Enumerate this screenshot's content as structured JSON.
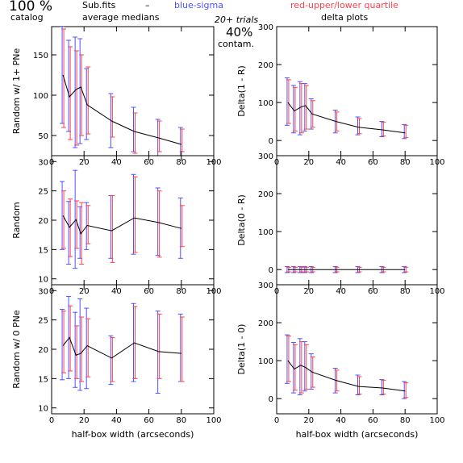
{
  "header": {
    "pct_big": "100 %",
    "catalog": "catalog",
    "subfits": "Sub.fits",
    "dash": "–",
    "medians": "average medians",
    "blue": "blue-sigma",
    "red": "red-upper/lower quartile",
    "trials": "20+ trials",
    "contam_pct": "40%",
    "contam": "contam.",
    "delta_title": "delta plots"
  },
  "colors": {
    "blue": "#5050ff",
    "red": "#ff4050",
    "axis": "#000000",
    "line": "#000000"
  },
  "chart_data": [
    {
      "id": "random-1plus",
      "type": "line",
      "xlabel": "",
      "ylabel": "Random w/ 1+ PNe",
      "xlim": [
        0,
        100
      ],
      "ylim": [
        25,
        185
      ],
      "xticks": [
        0,
        20,
        40,
        60,
        80,
        100
      ],
      "yticks": [
        50,
        100,
        150
      ],
      "show_ytick_labels": [
        50,
        100,
        150
      ],
      "x": [
        7,
        11,
        15,
        18,
        22,
        37,
        51,
        66,
        80
      ],
      "y": [
        125,
        98,
        107,
        110,
        88,
        68,
        55,
        47,
        39
      ],
      "blue": [
        [
          65,
          185
        ],
        [
          55,
          168
        ],
        [
          35,
          172
        ],
        [
          40,
          170
        ],
        [
          45,
          133
        ],
        [
          35,
          102
        ],
        [
          30,
          85
        ],
        [
          25,
          70
        ],
        [
          25,
          60
        ]
      ],
      "red": [
        [
          60,
          182
        ],
        [
          45,
          160
        ],
        [
          38,
          155
        ],
        [
          50,
          150
        ],
        [
          52,
          135
        ],
        [
          48,
          98
        ],
        [
          28,
          78
        ],
        [
          30,
          68
        ],
        [
          30,
          58
        ]
      ]
    },
    {
      "id": "delta-1-r",
      "type": "line",
      "xlabel": "",
      "ylabel": "Delta(1 - R)",
      "xlim": [
        0,
        100
      ],
      "ylim": [
        -40,
        300
      ],
      "xticks": [
        0,
        20,
        40,
        60,
        80,
        100
      ],
      "yticks": [
        0,
        100,
        200,
        300
      ],
      "show_ytick_labels": [
        0,
        100,
        200,
        300
      ],
      "x": [
        7,
        11,
        15,
        18,
        22,
        37,
        51,
        66,
        80
      ],
      "y": [
        100,
        78,
        88,
        92,
        70,
        50,
        35,
        28,
        20
      ],
      "blue": [
        [
          40,
          165
        ],
        [
          20,
          145
        ],
        [
          15,
          155
        ],
        [
          25,
          150
        ],
        [
          30,
          110
        ],
        [
          20,
          80
        ],
        [
          15,
          62
        ],
        [
          10,
          50
        ],
        [
          5,
          42
        ]
      ],
      "red": [
        [
          45,
          160
        ],
        [
          25,
          140
        ],
        [
          20,
          150
        ],
        [
          30,
          145
        ],
        [
          35,
          105
        ],
        [
          25,
          75
        ],
        [
          18,
          58
        ],
        [
          12,
          48
        ],
        [
          8,
          40
        ]
      ]
    },
    {
      "id": "random",
      "type": "line",
      "xlabel": "",
      "ylabel": "Random",
      "xlim": [
        0,
        100
      ],
      "ylim": [
        9,
        31
      ],
      "xticks": [
        0,
        20,
        40,
        60,
        80,
        100
      ],
      "yticks": [
        10,
        15,
        20,
        25,
        30
      ],
      "show_ytick_labels": [
        10,
        15,
        20,
        25,
        30
      ],
      "x": [
        7,
        11,
        15,
        18,
        22,
        37,
        51,
        66,
        80
      ],
      "y": [
        20.8,
        18.8,
        20.1,
        17.7,
        19.1,
        18.2,
        20.4,
        19.6,
        18.6
      ],
      "blue": [
        [
          15,
          26.6
        ],
        [
          12.5,
          23.2
        ],
        [
          11.8,
          28.5
        ],
        [
          13.5,
          22.3
        ],
        [
          15,
          23
        ],
        [
          13.5,
          24.2
        ],
        [
          14.2,
          27.8
        ],
        [
          14,
          25.5
        ],
        [
          13.5,
          23.8
        ]
      ],
      "red": [
        [
          15.2,
          25
        ],
        [
          13.8,
          23.6
        ],
        [
          15.2,
          23.3
        ],
        [
          12.5,
          23
        ],
        [
          16,
          22.5
        ],
        [
          12.8,
          24.2
        ],
        [
          14.5,
          27.4
        ],
        [
          13.7,
          25
        ],
        [
          15.5,
          22.5
        ]
      ]
    },
    {
      "id": "delta-0-r",
      "type": "line",
      "xlabel": "",
      "ylabel": "Delta(0 - R)",
      "xlim": [
        0,
        100
      ],
      "ylim": [
        -40,
        300
      ],
      "xticks": [
        0,
        20,
        40,
        60,
        80,
        100
      ],
      "yticks": [
        0,
        100,
        200,
        300
      ],
      "show_ytick_labels": [
        0,
        100,
        200,
        300
      ],
      "x": [
        7,
        11,
        15,
        18,
        22,
        37,
        51,
        66,
        80
      ],
      "y": [
        0,
        0,
        0,
        0,
        0,
        0,
        0,
        0,
        0
      ],
      "blue": [
        [
          -8,
          8
        ],
        [
          -8,
          8
        ],
        [
          -8,
          8
        ],
        [
          -8,
          8
        ],
        [
          -8,
          8
        ],
        [
          -8,
          8
        ],
        [
          -8,
          8
        ],
        [
          -8,
          8
        ],
        [
          -8,
          8
        ]
      ],
      "red": [
        [
          -6,
          6
        ],
        [
          -6,
          6
        ],
        [
          -6,
          6
        ],
        [
          -6,
          6
        ],
        [
          -6,
          6
        ],
        [
          -6,
          6
        ],
        [
          -6,
          6
        ],
        [
          -6,
          6
        ],
        [
          -6,
          6
        ]
      ]
    },
    {
      "id": "random-0",
      "type": "line",
      "xlabel": "half-box width (arcseconds)",
      "ylabel": "Random w/ 0 PNe",
      "xlim": [
        0,
        100
      ],
      "ylim": [
        9,
        31
      ],
      "xticks": [
        0,
        20,
        40,
        60,
        80,
        100
      ],
      "yticks": [
        10,
        15,
        20,
        25,
        30
      ],
      "show_ytick_labels": [
        10,
        15,
        20,
        25,
        30
      ],
      "x": [
        7,
        11,
        15,
        18,
        22,
        37,
        51,
        66,
        80
      ],
      "y": [
        20.6,
        22,
        19,
        19.3,
        20.6,
        18.5,
        21.1,
        19.6,
        19.3
      ],
      "blue": [
        [
          14.8,
          26.8
        ],
        [
          15,
          29
        ],
        [
          13.5,
          26.3
        ],
        [
          13,
          28.6
        ],
        [
          13.3,
          27
        ],
        [
          14,
          22.3
        ],
        [
          14.5,
          27.8
        ],
        [
          12.5,
          26.5
        ],
        [
          14.5,
          26
        ]
      ],
      "red": [
        [
          16,
          26.5
        ],
        [
          16.3,
          27.4
        ],
        [
          15,
          24
        ],
        [
          14.5,
          25.5
        ],
        [
          15.3,
          25.2
        ],
        [
          14.5,
          22
        ],
        [
          15,
          27.3
        ],
        [
          15,
          26
        ],
        [
          14.5,
          25.5
        ]
      ]
    },
    {
      "id": "delta-1-0",
      "type": "line",
      "xlabel": "half-box width (arcseconds)",
      "ylabel": "Delta(1 - 0)",
      "xlim": [
        0,
        100
      ],
      "ylim": [
        -40,
        300
      ],
      "xticks": [
        0,
        20,
        40,
        60,
        80,
        100
      ],
      "yticks": [
        0,
        100,
        200,
        300
      ],
      "show_ytick_labels": [
        0,
        100,
        200,
        300
      ],
      "x": [
        7,
        11,
        15,
        18,
        22,
        37,
        51,
        66,
        80
      ],
      "y": [
        100,
        78,
        88,
        82,
        70,
        48,
        32,
        28,
        20
      ],
      "blue": [
        [
          40,
          168
        ],
        [
          15,
          148
        ],
        [
          10,
          158
        ],
        [
          20,
          150
        ],
        [
          25,
          118
        ],
        [
          15,
          80
        ],
        [
          10,
          62
        ],
        [
          10,
          50
        ],
        [
          0,
          45
        ]
      ],
      "red": [
        [
          45,
          165
        ],
        [
          22,
          142
        ],
        [
          15,
          150
        ],
        [
          25,
          142
        ],
        [
          30,
          110
        ],
        [
          20,
          75
        ],
        [
          12,
          58
        ],
        [
          12,
          48
        ],
        [
          3,
          42
        ]
      ]
    }
  ]
}
